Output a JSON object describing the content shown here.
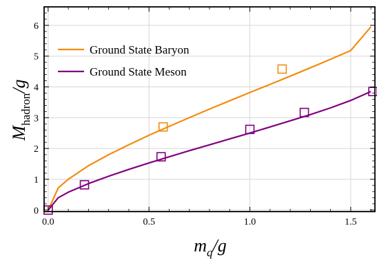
{
  "chart_data": {
    "type": "line",
    "xlabel": "m_q/g",
    "ylabel": "M_hadron/g",
    "xlim": [
      -0.02,
      1.62
    ],
    "ylim": [
      -0.05,
      6.6
    ],
    "xticks": [
      0.0,
      0.5,
      1.0,
      1.5
    ],
    "xtick_labels": [
      "0.0",
      "0.5",
      "1.0",
      "1.5"
    ],
    "yticks": [
      0,
      1,
      2,
      3,
      4,
      5,
      6
    ],
    "ytick_labels": [
      "0",
      "1",
      "2",
      "3",
      "4",
      "5",
      "6"
    ],
    "grid": true,
    "legend_position": "top-left",
    "series": [
      {
        "name": "Ground State Baryon",
        "color": "#f28c0f",
        "curve_x": [
          0.0,
          0.05,
          0.1,
          0.2,
          0.3,
          0.4,
          0.5,
          0.6,
          0.7,
          0.8,
          0.9,
          1.0,
          1.1,
          1.2,
          1.3,
          1.4,
          1.5,
          1.6
        ],
        "curve_y": [
          0.0,
          0.72,
          1.0,
          1.44,
          1.8,
          2.12,
          2.43,
          2.72,
          3.0,
          3.28,
          3.55,
          3.82,
          4.08,
          4.35,
          4.62,
          4.9,
          5.18,
          5.95
        ],
        "points_x": [
          0.0,
          0.57,
          1.16
        ],
        "points_y": [
          0.0,
          2.7,
          4.58
        ]
      },
      {
        "name": "Ground State Meson",
        "color": "#800080",
        "curve_x": [
          0.0,
          0.05,
          0.1,
          0.2,
          0.3,
          0.4,
          0.5,
          0.6,
          0.7,
          0.8,
          0.9,
          1.0,
          1.1,
          1.2,
          1.3,
          1.4,
          1.5,
          1.6
        ],
        "curve_y": [
          0.0,
          0.4,
          0.58,
          0.86,
          1.1,
          1.32,
          1.53,
          1.73,
          1.93,
          2.12,
          2.31,
          2.5,
          2.7,
          2.9,
          3.1,
          3.32,
          3.56,
          3.85
        ],
        "points_x": [
          0.0,
          0.18,
          0.56,
          1.0,
          1.27,
          1.61
        ],
        "points_y": [
          0.0,
          0.82,
          1.73,
          2.62,
          3.17,
          3.85
        ]
      }
    ]
  }
}
